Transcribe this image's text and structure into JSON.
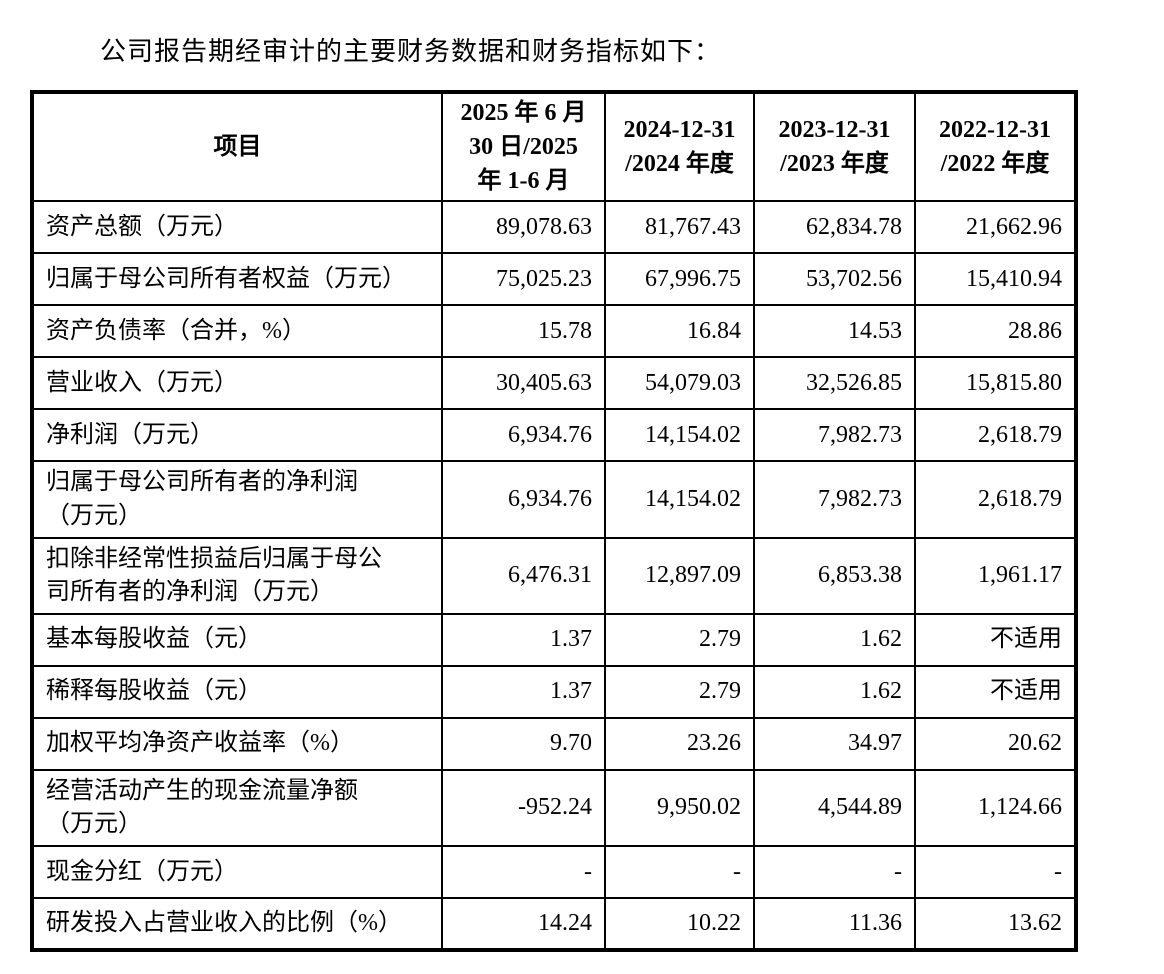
{
  "page": {
    "title": "公司报告期经审计的主要财务数据和财务指标如下："
  },
  "table": {
    "columns": [
      {
        "label": "项目"
      },
      {
        "label": "2025 年 6 月\n30 日/2025\n年 1-6 月"
      },
      {
        "label": "2024-12-31\n/2024 年度"
      },
      {
        "label": "2023-12-31\n/2023 年度"
      },
      {
        "label": "2022-12-31\n/2022 年度"
      }
    ],
    "rows": [
      {
        "item": "资产总额（万元）",
        "values": [
          "89,078.63",
          "81,767.43",
          "62,834.78",
          "21,662.96"
        ]
      },
      {
        "item": "归属于母公司所有者权益（万元）",
        "values": [
          "75,025.23",
          "67,996.75",
          "53,702.56",
          "15,410.94"
        ]
      },
      {
        "item": "资产负债率（合并，%）",
        "values": [
          "15.78",
          "16.84",
          "14.53",
          "28.86"
        ]
      },
      {
        "item": "营业收入（万元）",
        "values": [
          "30,405.63",
          "54,079.03",
          "32,526.85",
          "15,815.80"
        ]
      },
      {
        "item": "净利润（万元）",
        "values": [
          "6,934.76",
          "14,154.02",
          "7,982.73",
          "2,618.79"
        ]
      },
      {
        "item": "归属于母公司所有者的净利润\n（万元）",
        "values": [
          "6,934.76",
          "14,154.02",
          "7,982.73",
          "2,618.79"
        ]
      },
      {
        "item": "扣除非经常性损益后归属于母公\n司所有者的净利润（万元）",
        "values": [
          "6,476.31",
          "12,897.09",
          "6,853.38",
          "1,961.17"
        ]
      },
      {
        "item": "基本每股收益（元）",
        "values": [
          "1.37",
          "2.79",
          "1.62",
          "不适用"
        ]
      },
      {
        "item": "稀释每股收益（元）",
        "values": [
          "1.37",
          "2.79",
          "1.62",
          "不适用"
        ]
      },
      {
        "item": "加权平均净资产收益率（%）",
        "values": [
          "9.70",
          "23.26",
          "34.97",
          "20.62"
        ]
      },
      {
        "item": "经营活动产生的现金流量净额\n（万元）",
        "values": [
          "-952.24",
          "9,950.02",
          "4,544.89",
          "1,124.66"
        ]
      },
      {
        "item": "现金分红（万元）",
        "values": [
          "-",
          "-",
          "-",
          "-"
        ]
      },
      {
        "item": "研发投入占营业收入的比例（%）",
        "values": [
          "14.24",
          "10.22",
          "11.36",
          "13.62"
        ]
      }
    ],
    "colors": {
      "border": "#000000",
      "text": "#000000",
      "background": "#ffffff"
    }
  }
}
